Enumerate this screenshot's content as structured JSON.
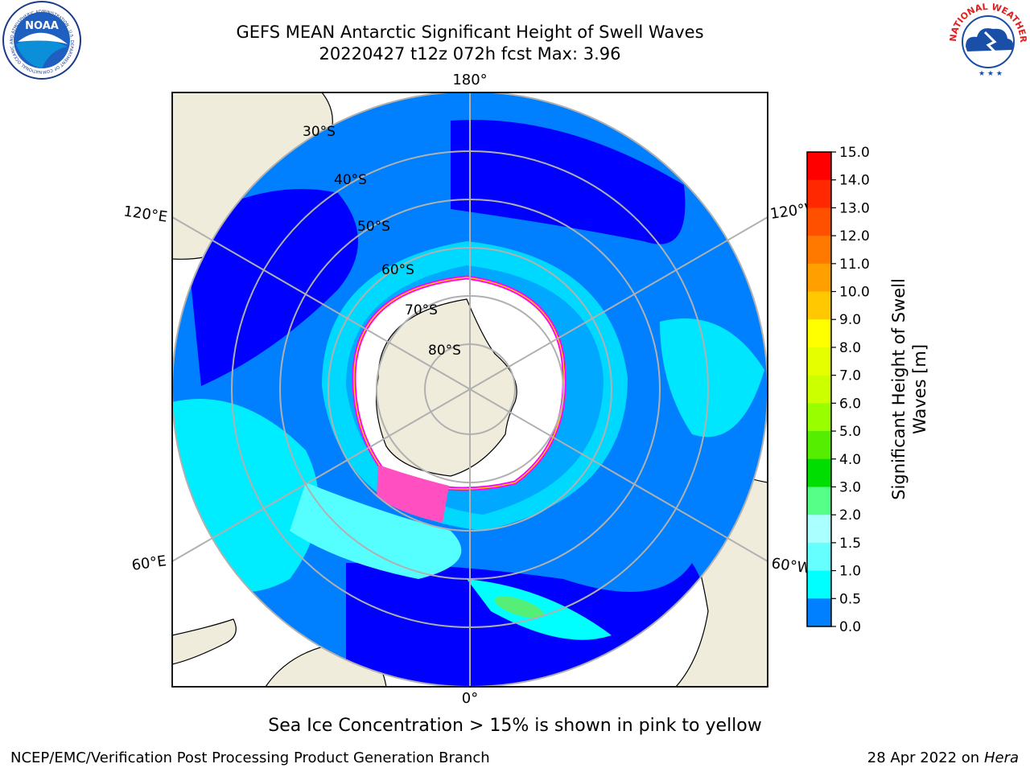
{
  "header": {
    "title_line_1": "GEFS MEAN Antarctic Significant Height of Swell Waves",
    "title_line_2": "20220427 t12z 072h fcst   Max: 3.96"
  },
  "map": {
    "projection": "south-polar-stereographic",
    "longitude_labels": {
      "top": "180°",
      "bottom": "0°",
      "upper_left": "120°E",
      "lower_left": "60°E",
      "upper_right": "120°W",
      "lower_right": "60°W"
    },
    "latitude_labels": [
      "30°S",
      "40°S",
      "50°S",
      "60°S",
      "70°S",
      "80°S"
    ],
    "colors": {
      "land": "#efecdc",
      "ocean_low": "#0000ff",
      "ocean_mid": "#0080ff",
      "ocean_high": "#00ffff",
      "ice_edge": "#ff00ff",
      "graticule": "#b0b0b0"
    }
  },
  "colorbar": {
    "label": "Significant Height of Swell Waves [m]",
    "label_line_1": "Significant Height of Swell",
    "label_line_2": "Waves [m]",
    "ticks": [
      "15.0",
      "14.0",
      "13.0",
      "12.0",
      "11.0",
      "10.0",
      "9.0",
      "8.0",
      "7.0",
      "6.0",
      "5.0",
      "4.0",
      "3.0",
      "2.0",
      "1.5",
      "1.0",
      "0.5",
      "0.0"
    ],
    "colors_top_to_bottom": [
      "#ff0000",
      "#ff2800",
      "#ff5000",
      "#ff7800",
      "#ffa000",
      "#ffc800",
      "#ffff00",
      "#e6ff00",
      "#ccff00",
      "#99ff00",
      "#55ee00",
      "#00dd00",
      "#55ff88",
      "#aaffff",
      "#66ffff",
      "#00ffff",
      "#0080ff",
      "#0000ff"
    ]
  },
  "logos": {
    "left": "NOAA",
    "left_ring": "NATIONAL OCEANIC AND ATMOSPHERIC ADMINISTRATION · U.S. DEPARTMENT OF COMMERCE",
    "right_ring": "NATIONAL WEATHER SERVICE"
  },
  "footer": {
    "note": "Sea Ice Concentration > 15% is shown in pink to yellow",
    "credit_left": "NCEP/EMC/Verification Post Processing Product Generation Branch",
    "credit_right_prefix": "28 Apr 2022 on ",
    "credit_right_host": "Hera"
  }
}
